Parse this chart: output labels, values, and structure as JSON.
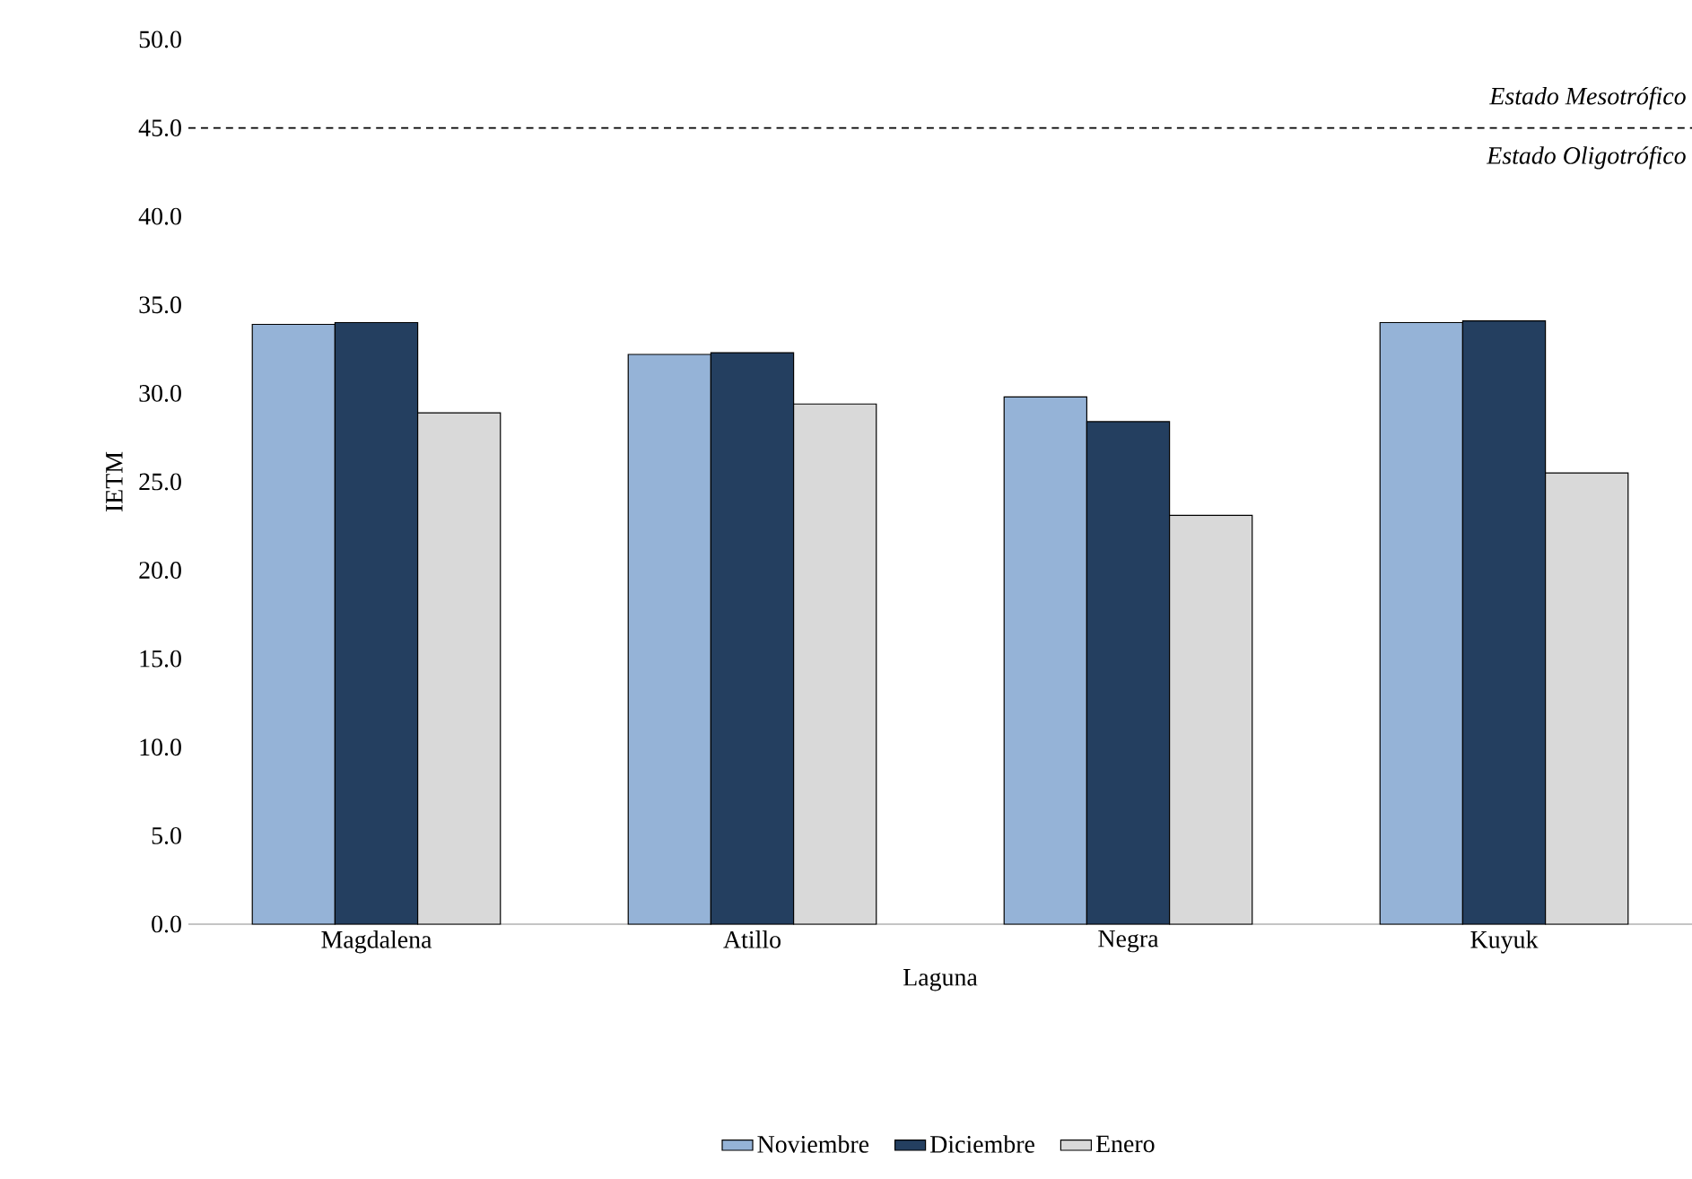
{
  "chart_data": {
    "type": "bar",
    "xlabel": "Laguna",
    "ylabel": "IETM",
    "categories": [
      "Magdalena",
      "Atillo",
      "Negra",
      "Kuyuk"
    ],
    "series": [
      {
        "name": "Noviembre",
        "color": "#95b3d7",
        "values": [
          33.9,
          32.2,
          29.8,
          34.0
        ]
      },
      {
        "name": "Diciembre",
        "color": "#243f60",
        "values": [
          34.0,
          32.3,
          28.4,
          34.1
        ]
      },
      {
        "name": "Enero",
        "color": "#d9d9d9",
        "values": [
          28.9,
          29.4,
          23.1,
          25.5
        ]
      }
    ],
    "ylim": [
      0,
      50
    ],
    "yticks": [
      {
        "value": 0,
        "label": "0.0"
      },
      {
        "value": 5,
        "label": "5.0"
      },
      {
        "value": 10,
        "label": "10.0"
      },
      {
        "value": 15,
        "label": "15.0"
      },
      {
        "value": 20,
        "label": "20.0"
      },
      {
        "value": 25,
        "label": "25.0"
      },
      {
        "value": 30,
        "label": "30.0"
      },
      {
        "value": 35,
        "label": "35.0"
      },
      {
        "value": 40,
        "label": "40.0"
      },
      {
        "value": 45,
        "label": "45.0"
      },
      {
        "value": 50,
        "label": "50.0"
      }
    ],
    "ref_lines": [
      {
        "axis": "y",
        "value": 45,
        "line_style": "dashed",
        "color": "#000000"
      }
    ],
    "annotations": [
      "Estado Mesotrófico",
      "Estado Oligotrófico"
    ],
    "grid": false,
    "legend": "bottom"
  }
}
